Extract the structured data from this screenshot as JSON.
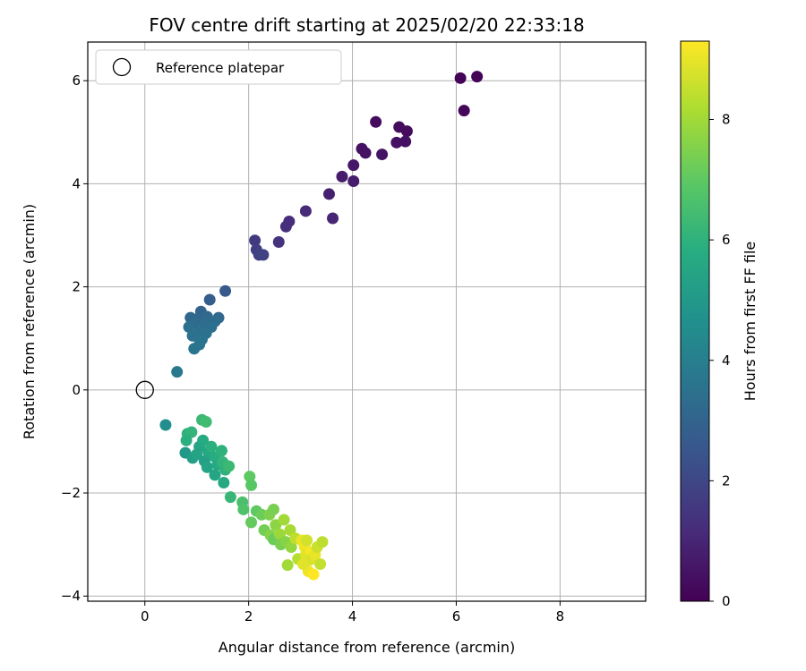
{
  "chart_data": {
    "type": "scatter",
    "title": "FOV centre drift starting at 2025/02/20 22:33:18",
    "xlabel": "Angular distance from reference (arcmin)",
    "ylabel": "Rotation from reference (arcmin)",
    "xlim": [
      -1.1,
      9.65
    ],
    "ylim": [
      -4.1,
      6.75
    ],
    "xticks": [
      0,
      2,
      4,
      6,
      8
    ],
    "xtick_labels": [
      "0",
      "2",
      "4",
      "6",
      "8"
    ],
    "yticks": [
      -4,
      -2,
      0,
      2,
      4,
      6
    ],
    "ytick_labels": [
      "−4",
      "−2",
      "0",
      "2",
      "4",
      "6"
    ],
    "grid": true,
    "legend": {
      "placement": "upper-left",
      "entries": [
        "Reference platepar"
      ]
    },
    "reference_point": {
      "x": 0,
      "y": 0
    },
    "colorbar": {
      "label": "Hours from first FF file",
      "range": [
        0,
        9.3
      ],
      "ticks": [
        0,
        2,
        4,
        6,
        8
      ],
      "tick_labels": [
        "0",
        "2",
        "4",
        "6",
        "8"
      ],
      "colormap": "viridis"
    },
    "points": [
      {
        "x": 6.08,
        "y": 6.05,
        "t": 0.05
      },
      {
        "x": 6.4,
        "y": 6.08,
        "t": 0.05
      },
      {
        "x": 6.15,
        "y": 5.42,
        "t": 0.15
      },
      {
        "x": 4.45,
        "y": 5.2,
        "t": 0.3
      },
      {
        "x": 4.9,
        "y": 5.1,
        "t": 0.3
      },
      {
        "x": 5.05,
        "y": 5.02,
        "t": 0.3
      },
      {
        "x": 4.85,
        "y": 4.8,
        "t": 0.4
      },
      {
        "x": 5.02,
        "y": 4.82,
        "t": 0.4
      },
      {
        "x": 4.18,
        "y": 4.68,
        "t": 0.45
      },
      {
        "x": 4.25,
        "y": 4.6,
        "t": 0.45
      },
      {
        "x": 4.57,
        "y": 4.57,
        "t": 0.5
      },
      {
        "x": 4.02,
        "y": 4.36,
        "t": 0.6
      },
      {
        "x": 3.8,
        "y": 4.14,
        "t": 0.7
      },
      {
        "x": 4.02,
        "y": 4.05,
        "t": 0.75
      },
      {
        "x": 3.55,
        "y": 3.8,
        "t": 0.85
      },
      {
        "x": 3.62,
        "y": 3.33,
        "t": 1.0
      },
      {
        "x": 3.1,
        "y": 3.47,
        "t": 1.1
      },
      {
        "x": 2.78,
        "y": 3.27,
        "t": 1.2
      },
      {
        "x": 2.72,
        "y": 3.17,
        "t": 1.25
      },
      {
        "x": 2.58,
        "y": 2.87,
        "t": 1.4
      },
      {
        "x": 2.12,
        "y": 2.9,
        "t": 1.6
      },
      {
        "x": 2.15,
        "y": 2.72,
        "t": 1.7
      },
      {
        "x": 2.2,
        "y": 2.62,
        "t": 1.8
      },
      {
        "x": 2.28,
        "y": 2.62,
        "t": 1.85
      },
      {
        "x": 1.55,
        "y": 1.92,
        "t": 2.6
      },
      {
        "x": 1.25,
        "y": 1.75,
        "t": 2.8
      },
      {
        "x": 1.08,
        "y": 1.52,
        "t": 3.0
      },
      {
        "x": 0.88,
        "y": 1.4,
        "t": 3.1
      },
      {
        "x": 1.02,
        "y": 1.38,
        "t": 3.15
      },
      {
        "x": 1.2,
        "y": 1.42,
        "t": 3.2
      },
      {
        "x": 1.42,
        "y": 1.4,
        "t": 3.2
      },
      {
        "x": 1.35,
        "y": 1.33,
        "t": 3.3
      },
      {
        "x": 0.95,
        "y": 1.3,
        "t": 3.3
      },
      {
        "x": 1.15,
        "y": 1.28,
        "t": 3.35
      },
      {
        "x": 0.85,
        "y": 1.22,
        "t": 3.4
      },
      {
        "x": 1.28,
        "y": 1.22,
        "t": 3.4
      },
      {
        "x": 1.05,
        "y": 1.12,
        "t": 3.45
      },
      {
        "x": 0.92,
        "y": 1.05,
        "t": 3.5
      },
      {
        "x": 1.18,
        "y": 1.1,
        "t": 3.5
      },
      {
        "x": 1.1,
        "y": 0.98,
        "t": 3.55
      },
      {
        "x": 1.05,
        "y": 0.88,
        "t": 3.6
      },
      {
        "x": 0.95,
        "y": 0.8,
        "t": 3.65
      },
      {
        "x": 0.62,
        "y": 0.35,
        "t": 3.8
      },
      {
        "x": 0.4,
        "y": -0.68,
        "t": 4.6
      },
      {
        "x": 0.82,
        "y": -0.85,
        "t": 6.0
      },
      {
        "x": 0.9,
        "y": -0.82,
        "t": 6.1
      },
      {
        "x": 1.1,
        "y": -0.58,
        "t": 6.3
      },
      {
        "x": 1.18,
        "y": -0.62,
        "t": 6.4
      },
      {
        "x": 0.8,
        "y": -0.98,
        "t": 5.9
      },
      {
        "x": 0.78,
        "y": -1.22,
        "t": 5.0
      },
      {
        "x": 0.92,
        "y": -1.32,
        "t": 5.2
      },
      {
        "x": 1.05,
        "y": -1.1,
        "t": 5.5
      },
      {
        "x": 1.12,
        "y": -0.98,
        "t": 5.7
      },
      {
        "x": 1.0,
        "y": -1.25,
        "t": 5.4
      },
      {
        "x": 1.15,
        "y": -1.38,
        "t": 5.3
      },
      {
        "x": 1.22,
        "y": -1.2,
        "t": 5.6
      },
      {
        "x": 1.28,
        "y": -1.1,
        "t": 5.9
      },
      {
        "x": 1.35,
        "y": -1.3,
        "t": 5.8
      },
      {
        "x": 1.2,
        "y": -1.5,
        "t": 5.4
      },
      {
        "x": 1.4,
        "y": -1.45,
        "t": 5.7
      },
      {
        "x": 1.48,
        "y": -1.18,
        "t": 6.0
      },
      {
        "x": 1.5,
        "y": -1.4,
        "t": 6.1
      },
      {
        "x": 1.55,
        "y": -1.55,
        "t": 6.0
      },
      {
        "x": 1.35,
        "y": -1.65,
        "t": 5.5
      },
      {
        "x": 1.52,
        "y": -1.8,
        "t": 5.6
      },
      {
        "x": 1.62,
        "y": -1.48,
        "t": 6.3
      },
      {
        "x": 1.65,
        "y": -2.08,
        "t": 6.2
      },
      {
        "x": 1.88,
        "y": -2.18,
        "t": 6.6
      },
      {
        "x": 2.02,
        "y": -1.68,
        "t": 7.0
      },
      {
        "x": 2.05,
        "y": -1.85,
        "t": 6.9
      },
      {
        "x": 1.9,
        "y": -2.32,
        "t": 6.7
      },
      {
        "x": 2.15,
        "y": -2.35,
        "t": 7.0
      },
      {
        "x": 2.05,
        "y": -2.57,
        "t": 7.1
      },
      {
        "x": 2.25,
        "y": -2.42,
        "t": 7.2
      },
      {
        "x": 2.4,
        "y": -2.42,
        "t": 7.5
      },
      {
        "x": 2.48,
        "y": -2.32,
        "t": 7.4
      },
      {
        "x": 2.3,
        "y": -2.72,
        "t": 7.3
      },
      {
        "x": 2.42,
        "y": -2.82,
        "t": 7.6
      },
      {
        "x": 2.52,
        "y": -2.62,
        "t": 7.7
      },
      {
        "x": 2.48,
        "y": -2.9,
        "t": 7.2
      },
      {
        "x": 2.6,
        "y": -2.8,
        "t": 7.9
      },
      {
        "x": 2.68,
        "y": -2.52,
        "t": 8.0
      },
      {
        "x": 2.62,
        "y": -3.0,
        "t": 7.4
      },
      {
        "x": 2.72,
        "y": -2.95,
        "t": 7.6
      },
      {
        "x": 2.8,
        "y": -2.72,
        "t": 8.1
      },
      {
        "x": 2.82,
        "y": -3.05,
        "t": 7.8
      },
      {
        "x": 2.75,
        "y": -3.4,
        "t": 8.0
      },
      {
        "x": 2.9,
        "y": -2.88,
        "t": 8.4
      },
      {
        "x": 2.95,
        "y": -3.28,
        "t": 8.3
      },
      {
        "x": 3.02,
        "y": -2.92,
        "t": 9.0
      },
      {
        "x": 3.08,
        "y": -3.05,
        "t": 9.1
      },
      {
        "x": 3.12,
        "y": -2.92,
        "t": 8.7
      },
      {
        "x": 3.1,
        "y": -3.2,
        "t": 8.9
      },
      {
        "x": 3.2,
        "y": -3.15,
        "t": 9.2
      },
      {
        "x": 3.18,
        "y": -3.3,
        "t": 8.8
      },
      {
        "x": 3.28,
        "y": -3.2,
        "t": 9.0
      },
      {
        "x": 3.32,
        "y": -3.05,
        "t": 8.6
      },
      {
        "x": 3.15,
        "y": -3.52,
        "t": 9.1
      },
      {
        "x": 3.25,
        "y": -3.58,
        "t": 9.3
      },
      {
        "x": 3.38,
        "y": -3.38,
        "t": 8.5
      },
      {
        "x": 3.42,
        "y": -2.95,
        "t": 8.4
      },
      {
        "x": 3.05,
        "y": -3.38,
        "t": 8.9
      }
    ]
  }
}
